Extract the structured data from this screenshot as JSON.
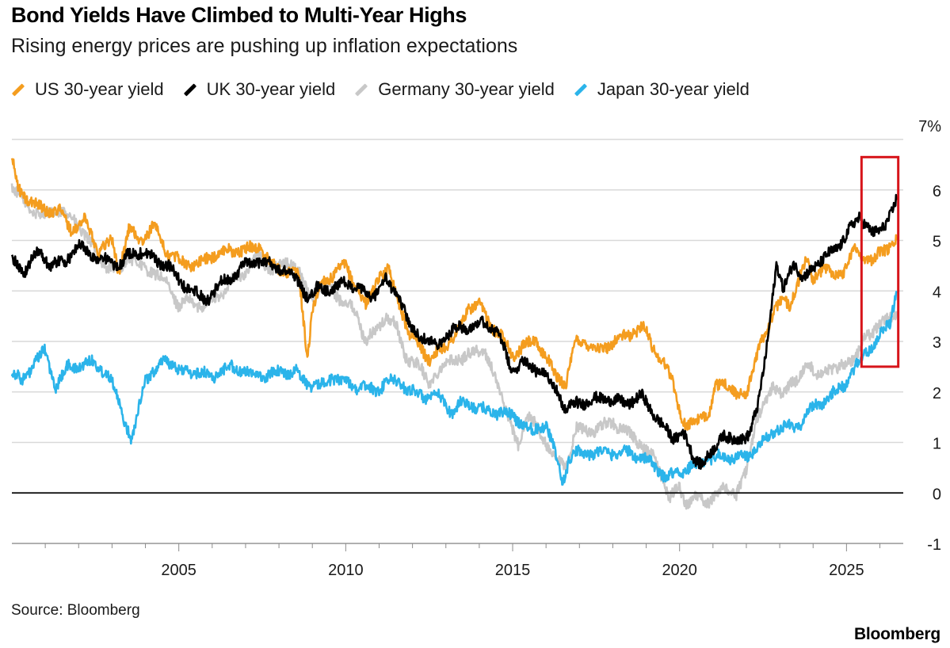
{
  "chart_data": {
    "type": "line",
    "title": "Bond Yields Have Climbed to Multi-Year Highs",
    "subtitle": "Rising energy prices are pushing up inflation expectations",
    "source": "Source: Bloomberg",
    "brand": "Bloomberg",
    "unit_label": "7%",
    "y_ticks": [
      -1,
      0,
      1,
      2,
      3,
      4,
      5,
      6,
      7
    ],
    "y_tick_labels": [
      "-1",
      "0",
      "1",
      "2",
      "3",
      "4",
      "5",
      "6",
      "7%"
    ],
    "ylim": [
      -1,
      7
    ],
    "x_ticks": [
      2005,
      2010,
      2015,
      2020,
      2025
    ],
    "x_tick_labels": [
      "2005",
      "2010",
      "2015",
      "2020",
      "2025"
    ],
    "xlim": [
      2000.0,
      2026.7
    ],
    "grid": true,
    "legend_position": "top",
    "highlight_box": {
      "x_range": [
        2025.45,
        2026.55
      ],
      "y_range": [
        2.5,
        6.65
      ],
      "color": "#d7141a"
    },
    "series": [
      {
        "name": "Germany 30-year yield",
        "color": "#c8c8c8",
        "x": [
          2000.0,
          2000.3,
          2000.6,
          2001.0,
          2001.5,
          2002.0,
          2002.4,
          2002.8,
          2003.2,
          2003.5,
          2003.8,
          2004.2,
          2004.7,
          2005.0,
          2005.3,
          2005.7,
          2006.2,
          2006.6,
          2007.0,
          2007.4,
          2007.8,
          2008.2,
          2008.5,
          2008.9,
          2009.2,
          2009.5,
          2009.9,
          2010.3,
          2010.6,
          2010.9,
          2011.2,
          2011.5,
          2011.8,
          2012.2,
          2012.5,
          2012.8,
          2013.2,
          2013.5,
          2013.9,
          2014.2,
          2014.6,
          2015.0,
          2015.2,
          2015.4,
          2015.7,
          2016.0,
          2016.3,
          2016.6,
          2016.9,
          2017.2,
          2017.6,
          2018.0,
          2018.4,
          2018.8,
          2019.2,
          2019.5,
          2019.7,
          2020.0,
          2020.2,
          2020.5,
          2020.8,
          2021.1,
          2021.4,
          2021.7,
          2022.0,
          2022.3,
          2022.6,
          2022.8,
          2023.1,
          2023.5,
          2023.8,
          2024.1,
          2024.4,
          2024.7,
          2025.0,
          2025.3,
          2025.6,
          2025.9,
          2026.2,
          2026.5
        ],
        "values": [
          6.1,
          5.8,
          5.6,
          5.5,
          5.6,
          5.3,
          4.9,
          4.5,
          4.4,
          4.7,
          4.5,
          4.4,
          4.1,
          3.7,
          3.8,
          3.7,
          3.9,
          4.2,
          4.4,
          4.7,
          4.4,
          4.6,
          4.5,
          3.9,
          4.0,
          4.1,
          3.8,
          3.6,
          3.0,
          3.2,
          3.5,
          3.3,
          2.7,
          2.5,
          2.2,
          2.4,
          2.7,
          2.6,
          2.9,
          2.7,
          2.1,
          1.2,
          0.9,
          1.6,
          1.3,
          1.0,
          0.6,
          0.5,
          1.3,
          1.2,
          1.3,
          1.4,
          1.2,
          1.0,
          0.7,
          0.3,
          -0.1,
          0.1,
          -0.2,
          -0.1,
          -0.2,
          0.0,
          0.1,
          0.0,
          0.4,
          1.5,
          1.8,
          2.1,
          2.0,
          2.2,
          2.6,
          2.3,
          2.5,
          2.4,
          2.6,
          2.7,
          3.1,
          3.3,
          3.4,
          3.6
        ]
      },
      {
        "name": "Japan 30-year yield",
        "color": "#2bb4ea",
        "x": [
          2000.0,
          2000.3,
          2000.7,
          2001.0,
          2001.3,
          2001.7,
          2002.0,
          2002.4,
          2002.8,
          2003.0,
          2003.2,
          2003.4,
          2003.6,
          2003.8,
          2004.0,
          2004.3,
          2004.6,
          2005.0,
          2005.5,
          2006.0,
          2006.5,
          2007.0,
          2007.5,
          2008.0,
          2008.5,
          2008.8,
          2009.2,
          2009.6,
          2010.0,
          2010.3,
          2010.6,
          2010.9,
          2011.2,
          2011.6,
          2012.0,
          2012.4,
          2012.8,
          2013.2,
          2013.5,
          2013.9,
          2014.3,
          2014.7,
          2015.0,
          2015.3,
          2015.6,
          2016.0,
          2016.3,
          2016.5,
          2016.7,
          2017.0,
          2017.5,
          2018.0,
          2018.5,
          2018.9,
          2019.3,
          2019.6,
          2019.9,
          2020.3,
          2020.7,
          2021.0,
          2021.5,
          2022.0,
          2022.5,
          2022.8,
          2023.0,
          2023.5,
          2024.0,
          2024.5,
          2025.0,
          2025.3,
          2025.6,
          2025.9,
          2026.1,
          2026.3,
          2026.5
        ],
        "values": [
          2.4,
          2.2,
          2.6,
          2.8,
          2.1,
          2.5,
          2.5,
          2.6,
          2.4,
          2.2,
          1.8,
          1.4,
          1.0,
          1.7,
          2.3,
          2.4,
          2.7,
          2.4,
          2.4,
          2.3,
          2.5,
          2.4,
          2.3,
          2.4,
          2.4,
          2.2,
          2.1,
          2.3,
          2.2,
          2.1,
          2.1,
          2.0,
          2.2,
          2.2,
          2.0,
          1.9,
          1.9,
          1.6,
          1.8,
          1.7,
          1.6,
          1.6,
          1.5,
          1.4,
          1.2,
          1.4,
          0.7,
          0.2,
          0.7,
          0.8,
          0.8,
          0.8,
          0.8,
          0.7,
          0.5,
          0.3,
          0.4,
          0.5,
          0.6,
          0.7,
          0.7,
          0.7,
          1.0,
          1.2,
          1.3,
          1.3,
          1.7,
          1.9,
          2.2,
          2.5,
          2.8,
          3.0,
          3.2,
          3.4,
          4.0
        ]
      },
      {
        "name": "US 30-year yield",
        "color": "#f49d1f",
        "x": [
          2000.0,
          2000.2,
          2000.5,
          2001.0,
          2001.4,
          2001.8,
          2002.2,
          2002.6,
          2003.0,
          2003.2,
          2003.5,
          2003.9,
          2004.3,
          2004.6,
          2005.0,
          2005.5,
          2006.0,
          2006.5,
          2007.0,
          2007.4,
          2007.8,
          2008.2,
          2008.6,
          2008.85,
          2009.0,
          2009.3,
          2009.6,
          2010.0,
          2010.3,
          2010.6,
          2011.0,
          2011.3,
          2011.6,
          2011.9,
          2012.2,
          2012.5,
          2012.9,
          2013.3,
          2013.7,
          2014.0,
          2014.4,
          2014.8,
          2015.0,
          2015.3,
          2015.7,
          2016.0,
          2016.3,
          2016.6,
          2016.9,
          2017.2,
          2017.6,
          2018.0,
          2018.4,
          2018.9,
          2019.2,
          2019.5,
          2019.8,
          2020.1,
          2020.3,
          2020.6,
          2020.9,
          2021.1,
          2021.4,
          2021.7,
          2022.0,
          2022.3,
          2022.6,
          2022.8,
          2023.0,
          2023.3,
          2023.6,
          2023.8,
          2024.0,
          2024.3,
          2024.6,
          2024.9,
          2025.2,
          2025.5,
          2025.8,
          2026.1,
          2026.5
        ],
        "values": [
          6.6,
          6.0,
          5.8,
          5.6,
          5.6,
          5.2,
          5.4,
          4.8,
          5.0,
          4.4,
          5.2,
          5.0,
          5.3,
          4.8,
          4.6,
          4.5,
          4.7,
          4.8,
          4.8,
          4.9,
          4.5,
          4.4,
          4.3,
          2.7,
          3.6,
          4.2,
          4.3,
          4.5,
          4.1,
          3.7,
          4.3,
          4.4,
          3.8,
          3.1,
          3.0,
          2.6,
          2.9,
          3.1,
          3.7,
          3.7,
          3.3,
          3.0,
          2.7,
          2.9,
          3.0,
          2.7,
          2.3,
          2.2,
          3.0,
          3.0,
          2.8,
          3.0,
          3.1,
          3.3,
          2.9,
          2.6,
          2.2,
          1.4,
          1.3,
          1.5,
          1.6,
          2.1,
          2.2,
          1.9,
          2.0,
          2.7,
          3.2,
          3.6,
          3.8,
          3.7,
          4.3,
          4.6,
          4.2,
          4.5,
          4.3,
          4.4,
          4.8,
          4.7,
          4.6,
          4.8,
          5.0
        ]
      },
      {
        "name": "UK 30-year yield",
        "color": "#000000",
        "x": [
          2000.0,
          2000.4,
          2000.8,
          2001.2,
          2001.6,
          2002.0,
          2002.4,
          2002.8,
          2003.2,
          2003.5,
          2003.9,
          2004.3,
          2004.7,
          2005.0,
          2005.4,
          2005.8,
          2006.2,
          2006.6,
          2007.0,
          2007.4,
          2007.8,
          2008.2,
          2008.6,
          2008.9,
          2009.2,
          2009.6,
          2010.0,
          2010.4,
          2010.8,
          2011.2,
          2011.6,
          2011.9,
          2012.3,
          2012.7,
          2013.0,
          2013.4,
          2013.8,
          2014.2,
          2014.6,
          2015.0,
          2015.3,
          2015.6,
          2016.0,
          2016.3,
          2016.6,
          2016.9,
          2017.3,
          2017.7,
          2018.1,
          2018.5,
          2018.9,
          2019.2,
          2019.5,
          2019.8,
          2020.1,
          2020.4,
          2020.7,
          2021.0,
          2021.3,
          2021.6,
          2021.9,
          2022.1,
          2022.35,
          2022.55,
          2022.75,
          2022.9,
          2023.1,
          2023.4,
          2023.7,
          2024.0,
          2024.3,
          2024.6,
          2024.9,
          2025.2,
          2025.4,
          2025.6,
          2025.8,
          2026.0,
          2026.2,
          2026.4,
          2026.5
        ],
        "values": [
          4.6,
          4.4,
          4.8,
          4.5,
          4.6,
          4.9,
          4.7,
          4.6,
          4.5,
          4.7,
          4.8,
          4.6,
          4.5,
          4.2,
          4.0,
          3.8,
          4.1,
          4.3,
          4.5,
          4.6,
          4.5,
          4.4,
          4.2,
          3.8,
          4.1,
          4.0,
          4.2,
          4.0,
          3.9,
          4.2,
          3.9,
          3.3,
          3.1,
          2.9,
          3.1,
          3.3,
          3.3,
          3.4,
          3.1,
          2.4,
          2.6,
          2.5,
          2.3,
          2.1,
          1.6,
          1.8,
          1.8,
          1.9,
          1.8,
          1.8,
          1.9,
          1.6,
          1.3,
          1.1,
          1.2,
          0.7,
          0.6,
          0.8,
          1.2,
          1.0,
          1.1,
          1.2,
          1.7,
          2.6,
          3.7,
          4.5,
          4.0,
          4.6,
          4.2,
          4.5,
          4.6,
          4.8,
          5.0,
          5.3,
          5.5,
          5.3,
          5.1,
          5.2,
          5.4,
          5.6,
          5.8
        ]
      }
    ]
  }
}
